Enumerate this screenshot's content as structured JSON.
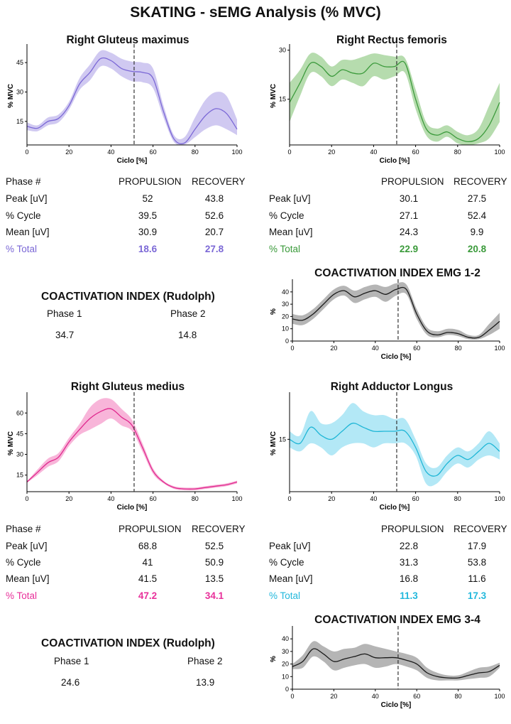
{
  "page_title": "SKATING - sEMG Analysis (% MVC)",
  "table_headers": {
    "phase": "Phase #",
    "propulsion": "PROPULSION",
    "recovery": "RECOVERY",
    "row_labels": [
      "Peak [uV]",
      "% Cycle",
      "Mean [uV]",
      "% Total"
    ]
  },
  "muscles": [
    {
      "id": "gmax",
      "title": "Right Gluteus maximus",
      "color": "#7b68d6",
      "band_color": "#c8bfef",
      "total_color": "#7b68d6",
      "show_phase_label": true,
      "table": {
        "propulsion": [
          "52",
          "39.5",
          "30.9",
          "18.6"
        ],
        "recovery": [
          "43.8",
          "52.6",
          "20.7",
          "27.8"
        ]
      }
    },
    {
      "id": "rf",
      "title": "Right Rectus femoris",
      "color": "#3d9b3d",
      "band_color": "#a9d6a0",
      "total_color": "#3a9a3a",
      "show_phase_label": false,
      "table": {
        "propulsion": [
          "30.1",
          "27.1",
          "24.3",
          "22.9"
        ],
        "recovery": [
          "27.5",
          "52.4",
          "9.9",
          "20.8"
        ]
      }
    },
    {
      "id": "gmed",
      "title": "Right Gluteus medius",
      "color": "#e0288e",
      "band_color": "#f7a8d2",
      "total_color": "#e8309a",
      "show_phase_label": true,
      "table": {
        "propulsion": [
          "68.8",
          "41",
          "41.5",
          "47.2"
        ],
        "recovery": [
          "52.5",
          "50.9",
          "13.5",
          "34.1"
        ]
      }
    },
    {
      "id": "al",
      "title": "Right Adductor Longus",
      "color": "#1fb6d6",
      "band_color": "#a6e4f4",
      "total_color": "#22b8dc",
      "show_phase_label": false,
      "table": {
        "propulsion": [
          "22.8",
          "31.3",
          "16.8",
          "11.3"
        ],
        "recovery": [
          "17.9",
          "53.8",
          "11.6",
          "17.3"
        ]
      }
    }
  ],
  "coactivation_rudolph": [
    {
      "title": "COACTIVATION INDEX (Rudolph)",
      "phase1_label": "Phase 1",
      "phase2_label": "Phase 2",
      "phase1_value": "34.7",
      "phase2_value": "14.8"
    },
    {
      "title": "COACTIVATION INDEX (Rudolph)",
      "phase1_label": "Phase 1",
      "phase2_label": "Phase 2",
      "phase1_value": "24.6",
      "phase2_value": "13.9"
    }
  ],
  "coactivation_emg": [
    {
      "title": "COACTIVATION INDEX EMG 1-2"
    },
    {
      "title": "COACTIVATION INDEX EMG 3-4"
    }
  ],
  "chart_data": [
    {
      "id": "gmax",
      "type": "area",
      "title": "Right Gluteus maximus",
      "xlabel": "Ciclo [%]",
      "ylabel": "% MVC",
      "xlim": [
        0,
        100
      ],
      "ylim": [
        3,
        53
      ],
      "xticks": [
        0,
        20,
        40,
        60,
        80,
        100
      ],
      "yticks": [
        15,
        30,
        45
      ],
      "phase_divider": 51,
      "x": [
        0,
        5,
        10,
        15,
        20,
        25,
        30,
        35,
        40,
        45,
        50,
        55,
        60,
        65,
        70,
        75,
        80,
        85,
        90,
        95,
        100
      ],
      "mean": [
        12.5,
        11.5,
        15,
        16.5,
        23,
        34,
        40,
        47,
        46,
        42,
        40.5,
        40,
        37,
        20,
        6,
        4,
        11,
        18,
        21.5,
        19,
        11
      ],
      "upper": [
        14.5,
        13,
        17,
        18.5,
        25,
        37,
        44,
        51,
        50,
        47,
        45.5,
        45,
        42,
        23,
        8,
        7,
        17,
        26,
        30,
        28,
        16
      ],
      "lower": [
        10.5,
        10,
        13,
        14.5,
        21,
        31,
        36,
        43,
        42,
        38,
        35.5,
        35,
        32,
        17,
        4.5,
        3.2,
        7,
        11,
        13,
        11,
        8
      ]
    },
    {
      "id": "rf",
      "type": "area",
      "title": "Right Rectus femoris",
      "xlabel": "Ciclo [%]",
      "ylabel": "% MVC",
      "xlim": [
        0,
        100
      ],
      "ylim": [
        1,
        31
      ],
      "xticks": [
        0,
        20,
        40,
        60,
        80,
        100
      ],
      "yticks": [
        15,
        30
      ],
      "phase_divider": 51,
      "x": [
        0,
        5,
        10,
        15,
        20,
        25,
        30,
        35,
        40,
        45,
        50,
        55,
        60,
        65,
        70,
        75,
        80,
        85,
        90,
        95,
        100
      ],
      "mean": [
        14,
        20,
        26,
        25,
        22,
        24,
        23,
        23,
        26,
        25,
        25,
        26,
        15,
        6,
        4,
        5,
        3,
        2,
        3,
        7,
        14
      ],
      "upper": [
        20,
        24,
        29,
        28,
        25,
        27,
        27,
        28,
        29,
        28.5,
        28,
        27.5,
        18,
        8,
        6,
        7,
        5,
        4,
        6,
        13,
        20
      ],
      "lower": [
        8,
        16,
        23,
        22,
        19,
        21,
        20,
        19,
        22,
        21,
        22,
        23,
        12,
        4,
        2,
        3.5,
        1.5,
        1,
        1.5,
        3,
        8
      ]
    },
    {
      "id": "coact12",
      "type": "area",
      "title": "COACTIVATION INDEX EMG 1-2",
      "xlabel": "Ciclo [%]",
      "ylabel": "%",
      "xlim": [
        0,
        100
      ],
      "ylim": [
        0,
        48
      ],
      "xticks": [
        0,
        20,
        40,
        60,
        80,
        100
      ],
      "yticks": [
        0,
        10,
        20,
        30,
        40
      ],
      "phase_divider": 51,
      "x": [
        0,
        5,
        10,
        15,
        20,
        25,
        30,
        35,
        40,
        45,
        50,
        55,
        60,
        65,
        70,
        75,
        80,
        85,
        90,
        95,
        100
      ],
      "mean": [
        18,
        17,
        22,
        30,
        38,
        41,
        36,
        39,
        41,
        38,
        42,
        42,
        22,
        8,
        5,
        7,
        6,
        3,
        3,
        9,
        16
      ],
      "upper": [
        22,
        21,
        26,
        34,
        42,
        45,
        41,
        44,
        46,
        44,
        47,
        46,
        26,
        11,
        8,
        10,
        9,
        5,
        5,
        14,
        23
      ],
      "lower": [
        14,
        13,
        18,
        26,
        34,
        37,
        31,
        34,
        36,
        32,
        37,
        38,
        18,
        5,
        3,
        5,
        4,
        1.5,
        1.5,
        5,
        10
      ]
    },
    {
      "id": "gmed",
      "type": "area",
      "title": "Right Gluteus medius",
      "xlabel": "Ciclo [%]",
      "ylabel": "% MVC",
      "xlim": [
        0,
        100
      ],
      "ylim": [
        3,
        73
      ],
      "xticks": [
        0,
        20,
        40,
        60,
        80,
        100
      ],
      "yticks": [
        15,
        30,
        45,
        60
      ],
      "phase_divider": 51,
      "x": [
        0,
        5,
        10,
        15,
        20,
        25,
        30,
        35,
        40,
        45,
        50,
        55,
        60,
        65,
        70,
        75,
        80,
        85,
        90,
        95,
        100
      ],
      "mean": [
        10,
        17,
        24,
        28,
        39,
        48,
        56,
        61,
        63,
        57,
        51,
        35,
        18,
        10,
        6,
        5,
        5,
        6,
        7,
        8,
        10
      ],
      "upper": [
        10.5,
        19,
        27,
        31,
        42,
        52,
        64,
        70,
        70,
        63,
        55,
        38,
        20,
        11,
        7,
        6,
        6,
        7,
        8,
        9,
        11
      ],
      "lower": [
        9.5,
        15,
        21,
        25,
        36,
        44,
        48,
        52,
        56,
        51,
        47,
        32,
        16,
        9,
        5,
        4,
        4,
        5,
        6,
        7,
        9
      ]
    },
    {
      "id": "al",
      "type": "area",
      "title": "Right Adductor Longus",
      "xlabel": "Ciclo [%]",
      "ylabel": "% MVC",
      "xlim": [
        0,
        100
      ],
      "ylim": [
        2,
        26
      ],
      "xticks": [
        0,
        20,
        40,
        60,
        80,
        100
      ],
      "yticks": [
        15
      ],
      "phase_divider": 51,
      "x": [
        0,
        5,
        10,
        15,
        20,
        25,
        30,
        35,
        40,
        45,
        50,
        55,
        60,
        65,
        70,
        75,
        80,
        85,
        90,
        95,
        100
      ],
      "mean": [
        15,
        14,
        18,
        16,
        15,
        17,
        19,
        18,
        17,
        17,
        17,
        17,
        13,
        7,
        6,
        9,
        11,
        10,
        12,
        14,
        12
      ],
      "upper": [
        17,
        16,
        22,
        19,
        19,
        21,
        24,
        22,
        21,
        21,
        20,
        20,
        15,
        9,
        8,
        11,
        13,
        12,
        14,
        17,
        14
      ],
      "lower": [
        13,
        12,
        14,
        13,
        11,
        13,
        14,
        14,
        13,
        14,
        14,
        14,
        11,
        4,
        4,
        7,
        9,
        8,
        10,
        11,
        10
      ]
    },
    {
      "id": "coact34",
      "type": "area",
      "title": "COACTIVATION INDEX EMG 3-4",
      "xlabel": "Ciclo [%]",
      "ylabel": "%",
      "xlim": [
        0,
        100
      ],
      "ylim": [
        0,
        48
      ],
      "xticks": [
        0,
        20,
        40,
        60,
        80,
        100
      ],
      "yticks": [
        0,
        10,
        20,
        30,
        40
      ],
      "phase_divider": 51,
      "x": [
        0,
        5,
        10,
        15,
        20,
        25,
        30,
        35,
        40,
        45,
        50,
        55,
        60,
        65,
        70,
        75,
        80,
        85,
        90,
        95,
        100
      ],
      "mean": [
        18,
        22,
        32,
        28,
        22,
        24,
        26,
        28,
        25,
        25,
        25,
        23,
        20,
        13,
        10,
        9,
        9,
        11,
        13,
        14,
        19
      ],
      "upper": [
        20,
        27,
        38,
        34,
        30,
        32,
        33,
        36,
        34,
        32,
        30,
        28,
        25,
        17,
        13,
        11,
        11,
        14,
        17,
        18,
        21
      ],
      "lower": [
        16,
        17,
        26,
        22,
        15,
        17,
        19,
        20,
        17,
        18,
        20,
        18,
        15,
        9,
        7,
        7,
        7,
        8,
        9,
        10,
        17
      ]
    }
  ]
}
